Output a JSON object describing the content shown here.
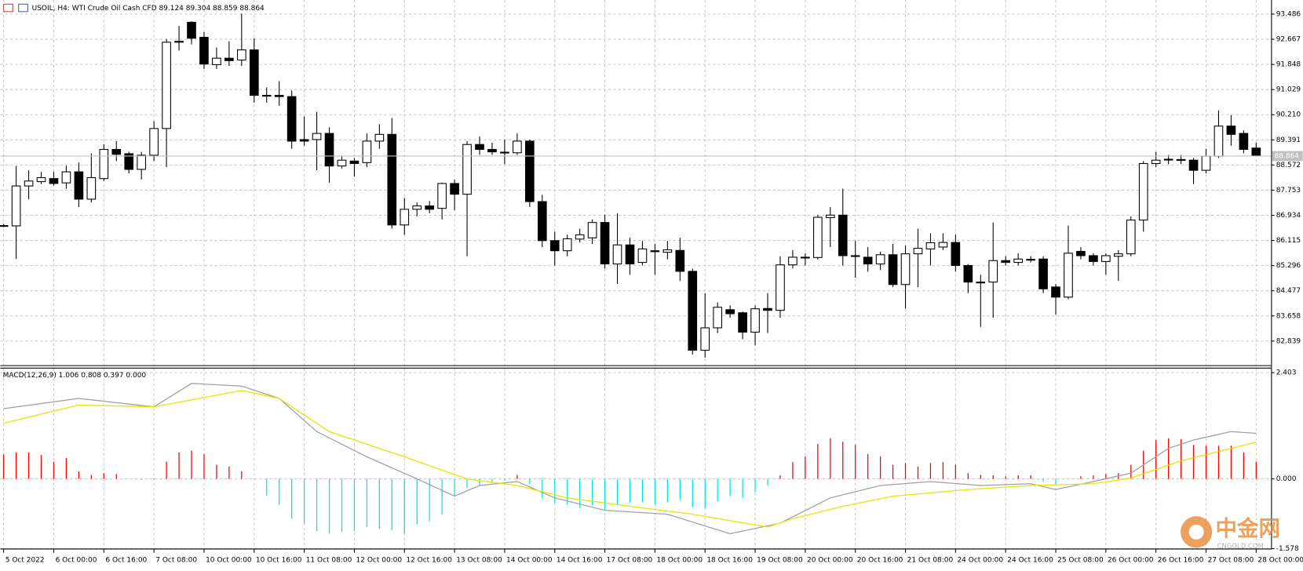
{
  "chart_data": [
    {
      "type": "candlestick",
      "title": "USOIL, H4:  WTI Crude Oil Cash CFD  89.124 89.304 88.859 88.864",
      "categories": [
        "5 Oct 2022",
        null,
        null,
        null,
        "6 Oct 00:00",
        null,
        null,
        null,
        "6 Oct 16:00",
        null,
        null,
        null,
        "7 Oct 08:00",
        null,
        null,
        null,
        "10 Oct 00:00",
        null,
        null,
        null,
        "10 Oct 16:00",
        null,
        null,
        null,
        "11 Oct 08:00",
        null,
        null,
        null,
        "12 Oct 00:00",
        null,
        null,
        null,
        "12 Oct 16:00",
        null,
        null,
        null,
        "13 Oct 08:00",
        null,
        null,
        null,
        "14 Oct 00:00",
        null,
        null,
        null,
        "14 Oct 16:00",
        null,
        null,
        null,
        "17 Oct 08:00",
        null,
        null,
        null,
        "18 Oct 00:00",
        null,
        null,
        null,
        "18 Oct 16:00",
        null,
        null,
        null,
        "19 Oct 08:00",
        null,
        null,
        null,
        "20 Oct 00:00",
        null,
        null,
        null,
        "20 Oct 16:00",
        null,
        null,
        null,
        "21 Oct 08:00",
        null,
        null,
        null,
        "24 Oct 00:00",
        null,
        null,
        null,
        "24 Oct 16:00",
        null,
        null,
        null,
        "25 Oct 08:00",
        null,
        null,
        null,
        "26 Oct 00:00",
        null,
        null,
        null,
        "26 Oct 16:00",
        null,
        null,
        null,
        "27 Oct 08:00",
        null,
        null,
        null,
        "28 Oct 00:00"
      ],
      "open": [
        86.6,
        86.59,
        87.89,
        88.03,
        88.13,
        87.99,
        88.35,
        87.46,
        88.13,
        89.08,
        88.94,
        88.43,
        88.89,
        89.76,
        92.57,
        93.22,
        92.73,
        91.84,
        92.05,
        91.99,
        92.32,
        90.84,
        90.84,
        90.8,
        89.4,
        89.4,
        89.6,
        88.54,
        88.7,
        88.65,
        89.35,
        89.57,
        86.62,
        87.13,
        87.24,
        87.16,
        87.97,
        87.62,
        89.24,
        89.08,
        88.99,
        88.97,
        89.35,
        87.38,
        86.11,
        85.78,
        86.16,
        86.2,
        86.7,
        85.35,
        85.97,
        85.4,
        85.78,
        85.73,
        85.79,
        85.11,
        82.54,
        83.27,
        83.86,
        83.76,
        83.13,
        83.9,
        83.84,
        85.32,
        85.57,
        85.56,
        86.86,
        86.94,
        85.62,
        85.57,
        85.35,
        85.65,
        84.68,
        85.68,
        85.84,
        85.9,
        86.05,
        85.3,
        84.76,
        84.76,
        85.46,
        85.4,
        85.5,
        85.51,
        84.6,
        84.27,
        85.76,
        85.62,
        85.43,
        85.6,
        85.68,
        86.78,
        88.62,
        88.76,
        88.75,
        88.73,
        88.4,
        88.86,
        89.84,
        89.6,
        89.124
      ],
      "high": [
        86.65,
        88.54,
        88.4,
        88.35,
        88.35,
        88.55,
        88.65,
        88.95,
        89.25,
        89.35,
        89.0,
        89.0,
        90.0,
        92.67,
        93.1,
        93.25,
        92.9,
        92.4,
        92.6,
        93.5,
        92.7,
        91.1,
        91.3,
        91.0,
        90.15,
        90.3,
        89.8,
        88.85,
        88.8,
        89.6,
        89.9,
        90.1,
        87.5,
        87.35,
        87.4,
        88.0,
        88.1,
        89.35,
        89.5,
        89.3,
        89.4,
        89.6,
        89.4,
        87.6,
        86.4,
        86.3,
        86.5,
        86.8,
        86.95,
        87.0,
        86.2,
        86.1,
        86.0,
        86.1,
        86.2,
        85.2,
        84.4,
        84.1,
        84.0,
        83.8,
        84.0,
        84.4,
        85.6,
        85.8,
        85.7,
        86.95,
        87.2,
        87.8,
        86.1,
        85.9,
        85.75,
        86.0,
        85.95,
        86.5,
        86.35,
        86.35,
        86.3,
        85.35,
        85.0,
        86.7,
        85.6,
        85.7,
        85.6,
        85.6,
        84.7,
        86.6,
        85.9,
        85.7,
        85.7,
        85.8,
        86.9,
        88.7,
        89.0,
        88.9,
        88.9,
        88.8,
        89.1,
        90.35,
        90.2,
        89.7,
        89.304
      ],
      "low": [
        86.55,
        85.51,
        87.46,
        87.95,
        87.9,
        87.8,
        87.2,
        87.35,
        88.05,
        88.7,
        88.3,
        88.1,
        88.7,
        88.5,
        92.3,
        92.5,
        91.7,
        91.7,
        91.8,
        91.8,
        90.6,
        90.6,
        90.5,
        89.1,
        89.2,
        88.4,
        88.0,
        88.45,
        88.2,
        88.5,
        89.1,
        86.5,
        86.3,
        86.9,
        87.0,
        86.8,
        87.1,
        85.6,
        88.9,
        88.9,
        88.6,
        88.9,
        87.2,
        85.9,
        85.3,
        85.6,
        86.05,
        86.0,
        85.2,
        84.7,
        85.0,
        85.3,
        85.0,
        85.5,
        84.8,
        82.4,
        82.3,
        83.1,
        83.6,
        82.9,
        82.7,
        83.1,
        83.6,
        85.2,
        85.3,
        85.5,
        85.9,
        85.3,
        84.9,
        85.1,
        85.15,
        84.6,
        83.9,
        84.6,
        85.3,
        85.8,
        85.1,
        84.4,
        83.3,
        83.6,
        85.3,
        85.3,
        85.4,
        84.4,
        83.7,
        84.2,
        85.5,
        85.3,
        85.0,
        84.8,
        85.6,
        86.4,
        88.5,
        88.6,
        88.6,
        87.95,
        88.3,
        88.8,
        89.2,
        88.95,
        88.859
      ],
      "close": [
        86.6,
        87.89,
        88.05,
        88.16,
        87.97,
        88.35,
        87.46,
        88.16,
        89.08,
        88.92,
        88.43,
        88.89,
        89.76,
        92.57,
        92.6,
        92.7,
        91.86,
        92.05,
        91.97,
        92.32,
        90.84,
        90.84,
        90.8,
        89.35,
        89.35,
        89.6,
        88.54,
        88.73,
        88.62,
        89.35,
        89.57,
        86.62,
        87.13,
        87.24,
        87.13,
        87.97,
        87.62,
        89.24,
        89.08,
        89.0,
        88.97,
        89.35,
        87.38,
        86.11,
        85.78,
        86.17,
        86.3,
        86.7,
        85.35,
        85.97,
        85.35,
        85.84,
        85.75,
        85.81,
        85.11,
        82.54,
        83.27,
        83.94,
        83.73,
        83.13,
        83.89,
        83.84,
        85.32,
        85.57,
        85.55,
        86.87,
        86.94,
        85.62,
        85.6,
        85.35,
        85.65,
        84.68,
        85.68,
        85.86,
        86.04,
        86.05,
        85.3,
        84.76,
        84.74,
        85.46,
        85.4,
        85.51,
        85.5,
        84.54,
        84.27,
        85.7,
        85.62,
        85.43,
        85.62,
        85.68,
        86.78,
        88.62,
        88.73,
        88.75,
        88.73,
        88.4,
        88.86,
        89.84,
        89.57,
        89.08,
        88.864
      ],
      "up_color": "#ffffff",
      "down_color": "#000000",
      "ylim": [
        82.054,
        93.945
      ],
      "yticks": [
        93.486,
        92.667,
        91.848,
        91.029,
        {
          "value": 90.21,
          "label": "90.210"
        },
        89.391,
        88.572,
        87.753,
        86.934,
        86.115,
        85.296,
        84.477,
        83.658,
        82.839
      ],
      "grid": true
    },
    {
      "type": "macd",
      "title": "MACD(12,26,9) 1.006 0.808 0.397 0.000",
      "histogram": {
        "color": "#ff0000",
        "negative_color": "#00e5ee",
        "values": [
          0.55,
          0.6,
          0.6,
          0.54,
          0.39,
          0.47,
          0.17,
          0.09,
          0.13,
          0.11,
          0,
          -0.02,
          0.01,
          0.39,
          0.6,
          0.64,
          0.56,
          0.32,
          0.28,
          0.17,
          0,
          -0.38,
          -0.58,
          -0.9,
          -1.01,
          -1.18,
          -1.24,
          -1.2,
          -1.18,
          -1.09,
          -1.13,
          -1.16,
          -1.24,
          -1.03,
          -0.96,
          -0.81,
          -0.39,
          -0.21,
          -0.15,
          -0.09,
          -0.04,
          0.09,
          -0.11,
          -0.43,
          -0.54,
          -0.58,
          -0.66,
          -0.6,
          -0.69,
          -0.58,
          -0.54,
          -0.53,
          -0.58,
          -0.53,
          -0.47,
          -0.64,
          -0.66,
          -0.51,
          -0.39,
          -0.43,
          -0.3,
          -0.15,
          0.08,
          0.38,
          0.51,
          0.79,
          0.92,
          0.84,
          0.77,
          0.56,
          0.51,
          0.32,
          0.36,
          0.28,
          0.36,
          0.38,
          0.32,
          0.13,
          0.09,
          0.08,
          0.06,
          0.08,
          0.08,
          -0.06,
          -0.13,
          0,
          0.06,
          0.08,
          0.11,
          0.13,
          0.32,
          0.64,
          0.88,
          0.92,
          0.9,
          0.77,
          0.75,
          0.75,
          0.75,
          0.6,
          0.39
        ]
      },
      "series": [
        {
          "color": "#a0a0a0",
          "x": [
            0,
            6,
            12,
            15,
            19,
            22,
            25,
            29,
            33,
            36,
            38,
            41,
            44,
            48,
            53,
            58,
            62,
            66,
            70,
            74,
            78,
            82,
            84,
            87,
            90,
            93,
            95,
            98,
            100
          ],
          "values": [
            1.59,
            1.82,
            1.63,
            2.16,
            2.1,
            1.82,
            1.07,
            0.5,
            0.0,
            -0.39,
            -0.15,
            -0.06,
            -0.43,
            -0.71,
            -0.8,
            -1.24,
            -1.0,
            -0.43,
            -0.15,
            -0.06,
            -0.15,
            -0.11,
            -0.24,
            -0.06,
            0.13,
            0.69,
            0.88,
            1.07,
            1.03
          ]
        },
        {
          "color": "#e6e600",
          "x": [
            0,
            6,
            12,
            19,
            22,
            26,
            32,
            37,
            41,
            45,
            50,
            55,
            61,
            63,
            67,
            71,
            77,
            82,
            87,
            90,
            94,
            98,
            100
          ],
          "values": [
            1.26,
            1.67,
            1.63,
            2.0,
            1.82,
            1.07,
            0.5,
            0.0,
            -0.15,
            -0.43,
            -0.62,
            -0.8,
            -1.09,
            -0.9,
            -0.62,
            -0.39,
            -0.24,
            -0.15,
            -0.11,
            0.02,
            0.41,
            0.69,
            0.83
          ]
        }
      ],
      "ylim": [
        -1.595,
        2.497
      ],
      "yticks": [
        2.403,
        {
          "value": 0,
          "label": "0.000"
        },
        -1.578
      ],
      "grid": true
    }
  ],
  "watermark": {
    "brand": "中金网",
    "site": "CNGOLD.COM"
  }
}
